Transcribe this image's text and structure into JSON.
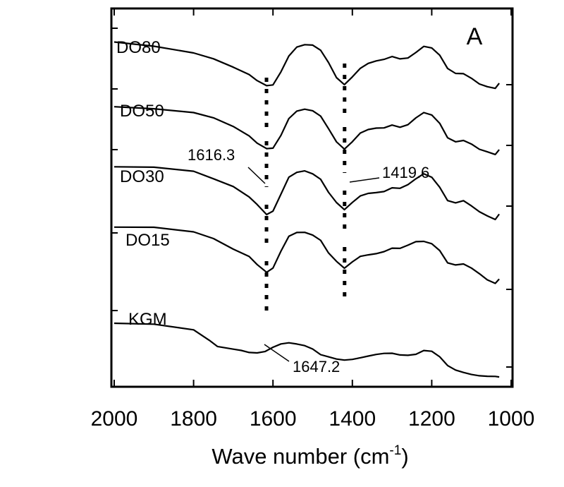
{
  "chart_data": {
    "type": "line",
    "panel_label": "A",
    "xlabel": {
      "main": "Wave number (cm",
      "sup": "-1",
      "close": ")"
    },
    "xlim": [
      2000,
      1000
    ],
    "x_reversed": true,
    "x_ticks": [
      2000,
      1800,
      1600,
      1400,
      1200,
      1000
    ],
    "x_tick_labels": [
      "2000",
      "1800",
      "1600",
      "1400",
      "1200",
      "1000"
    ],
    "y_tick_marks": 5,
    "grid": false,
    "legend": "none",
    "series": [
      {
        "name": "DO80",
        "x": [
          2000,
          1900,
          1800,
          1750,
          1700,
          1660,
          1640,
          1616,
          1600,
          1580,
          1560,
          1540,
          1520,
          1500,
          1480,
          1460,
          1440,
          1420,
          1400,
          1380,
          1360,
          1340,
          1320,
          1300,
          1280,
          1260,
          1240,
          1220,
          1200,
          1180,
          1160,
          1140,
          1120,
          1100,
          1080,
          1060,
          1040,
          1030
        ],
        "y": [
          4.95,
          4.9,
          4.8,
          4.7,
          4.55,
          4.42,
          4.32,
          4.25,
          4.28,
          4.5,
          4.75,
          4.88,
          4.9,
          4.88,
          4.8,
          4.62,
          4.4,
          4.3,
          4.42,
          4.54,
          4.6,
          4.63,
          4.66,
          4.72,
          4.7,
          4.72,
          4.8,
          4.88,
          4.84,
          4.72,
          4.52,
          4.46,
          4.47,
          4.4,
          4.3,
          4.24,
          4.2,
          4.28
        ]
      },
      {
        "name": "DO50",
        "x": [
          2000,
          1900,
          1800,
          1750,
          1700,
          1660,
          1640,
          1616,
          1600,
          1580,
          1560,
          1540,
          1520,
          1500,
          1480,
          1460,
          1440,
          1420,
          1400,
          1380,
          1360,
          1340,
          1320,
          1300,
          1280,
          1260,
          1240,
          1220,
          1200,
          1180,
          1160,
          1140,
          1120,
          1100,
          1080,
          1060,
          1040,
          1030
        ],
        "y": [
          3.95,
          3.92,
          3.85,
          3.75,
          3.6,
          3.45,
          3.35,
          3.28,
          3.3,
          3.5,
          3.75,
          3.85,
          3.87,
          3.85,
          3.78,
          3.6,
          3.4,
          3.28,
          3.38,
          3.5,
          3.55,
          3.58,
          3.6,
          3.66,
          3.63,
          3.66,
          3.75,
          3.82,
          3.78,
          3.66,
          3.45,
          3.4,
          3.42,
          3.35,
          3.25,
          3.2,
          3.16,
          3.25
        ]
      },
      {
        "name": "DO30",
        "x": [
          2000,
          1900,
          1800,
          1750,
          1700,
          1660,
          1640,
          1616,
          1600,
          1580,
          1560,
          1540,
          1520,
          1500,
          1480,
          1460,
          1440,
          1420,
          1400,
          1380,
          1360,
          1340,
          1320,
          1300,
          1280,
          1260,
          1240,
          1220,
          1200,
          1180,
          1160,
          1140,
          1120,
          1100,
          1080,
          1060,
          1040,
          1030
        ],
        "y": [
          2.95,
          2.93,
          2.85,
          2.72,
          2.6,
          2.45,
          2.35,
          2.2,
          2.25,
          2.5,
          2.75,
          2.82,
          2.85,
          2.82,
          2.75,
          2.55,
          2.38,
          2.25,
          2.35,
          2.45,
          2.5,
          2.53,
          2.56,
          2.62,
          2.6,
          2.64,
          2.72,
          2.8,
          2.76,
          2.62,
          2.42,
          2.38,
          2.4,
          2.3,
          2.2,
          2.14,
          2.1,
          2.2
        ]
      },
      {
        "name": "DO15",
        "x": [
          2000,
          1900,
          1800,
          1750,
          1700,
          1660,
          1640,
          1616,
          1600,
          1580,
          1560,
          1540,
          1520,
          1500,
          1480,
          1460,
          1440,
          1420,
          1400,
          1380,
          1360,
          1340,
          1320,
          1300,
          1280,
          1260,
          1240,
          1220,
          1200,
          1180,
          1160,
          1140,
          1120,
          1100,
          1080,
          1060,
          1040,
          1030
        ],
        "y": [
          1.95,
          1.93,
          1.85,
          1.75,
          1.6,
          1.5,
          1.38,
          1.25,
          1.3,
          1.55,
          1.78,
          1.85,
          1.87,
          1.84,
          1.76,
          1.55,
          1.4,
          1.28,
          1.38,
          1.48,
          1.52,
          1.55,
          1.58,
          1.62,
          1.6,
          1.64,
          1.7,
          1.72,
          1.7,
          1.6,
          1.4,
          1.35,
          1.35,
          1.28,
          1.2,
          1.12,
          1.08,
          1.15
        ]
      },
      {
        "name": "KGM",
        "x": [
          2000,
          1900,
          1800,
          1760,
          1740,
          1700,
          1680,
          1660,
          1640,
          1620,
          1600,
          1580,
          1560,
          1540,
          1520,
          1500,
          1480,
          1460,
          1440,
          1420,
          1400,
          1380,
          1360,
          1340,
          1320,
          1300,
          1280,
          1260,
          1240,
          1220,
          1200,
          1180,
          1160,
          1140,
          1120,
          1100,
          1080,
          1060,
          1040,
          1030
        ],
        "y": [
          0.95,
          0.93,
          0.85,
          0.7,
          0.62,
          0.58,
          0.55,
          0.5,
          0.48,
          0.5,
          0.58,
          0.65,
          0.68,
          0.66,
          0.62,
          0.55,
          0.45,
          0.42,
          0.4,
          0.4,
          0.42,
          0.44,
          0.45,
          0.46,
          0.47,
          0.48,
          0.47,
          0.48,
          0.5,
          0.55,
          0.52,
          0.42,
          0.28,
          0.22,
          0.2,
          0.18,
          0.16,
          0.14,
          0.12,
          0.1
        ]
      }
    ],
    "marker_lines": [
      {
        "x": 1616.3,
        "style": "dotted"
      },
      {
        "x": 1419.6,
        "style": "dotted"
      }
    ],
    "annotations": [
      {
        "text": "1616.3",
        "target_x": 1616.3
      },
      {
        "text": "1419.6",
        "target_x": 1419.6
      },
      {
        "text": "1647.2",
        "target_x": 1647.2
      }
    ]
  }
}
